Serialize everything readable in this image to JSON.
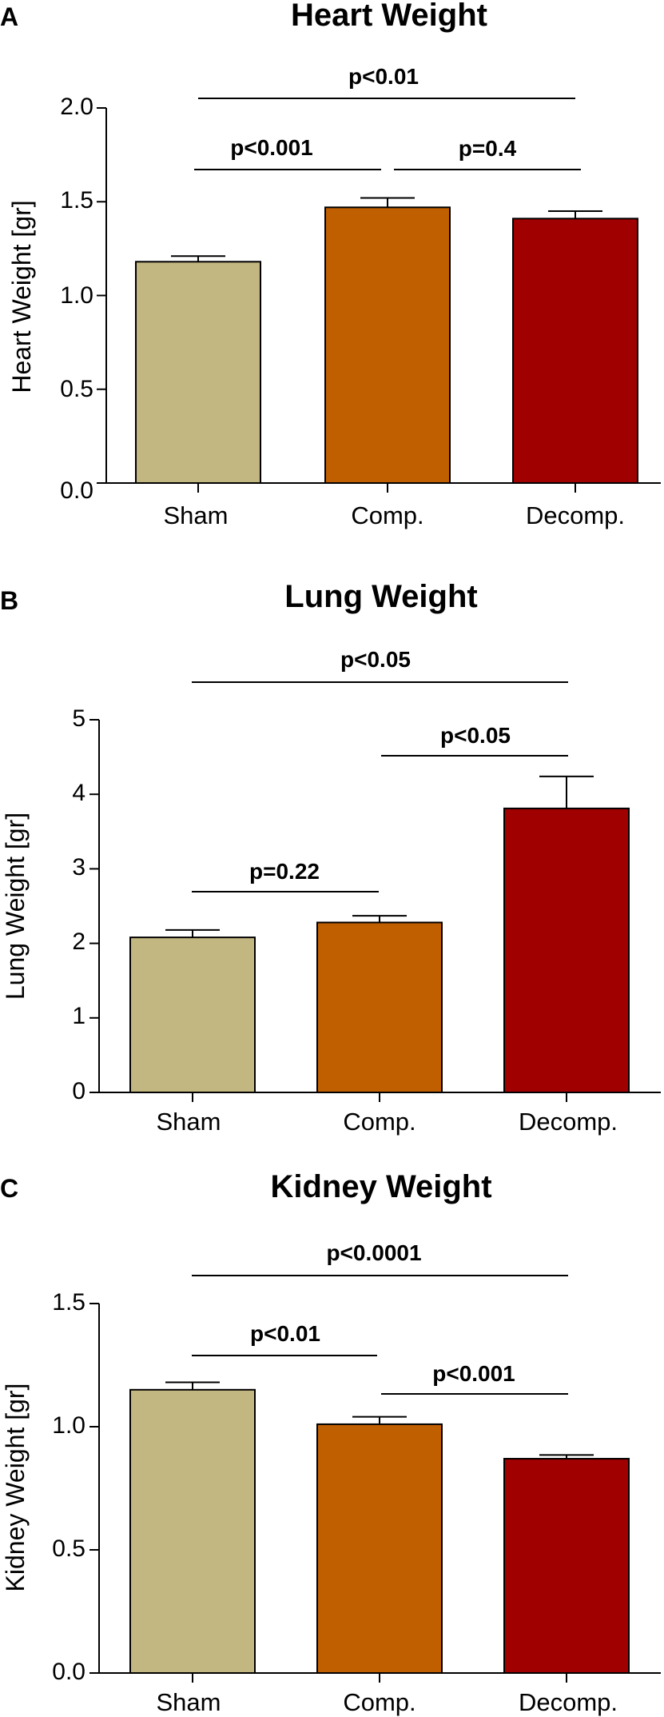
{
  "chart_data": [
    {
      "type": "bar",
      "panel": "A",
      "title": "Heart Weight",
      "ylabel": "Heart Weight [gr]",
      "categories": [
        "Sham",
        "Comp.",
        "Decomp."
      ],
      "values": [
        1.18,
        1.47,
        1.41
      ],
      "errors": [
        0.03,
        0.05,
        0.04
      ],
      "ylim": [
        0,
        2.0
      ],
      "yticks": [
        "0.0",
        "0.5",
        "1.0",
        "1.5",
        "2.0"
      ],
      "colors": [
        "#C2B780",
        "#C05F00",
        "#A00000"
      ],
      "comparisons": [
        {
          "from": "Sham",
          "to": "Comp.",
          "label": "p<0.001"
        },
        {
          "from": "Comp.",
          "to": "Decomp.",
          "label": "p=0.4"
        },
        {
          "from": "Sham",
          "to": "Decomp.",
          "label": "p<0.01"
        }
      ],
      "legend": "none",
      "grid": false
    },
    {
      "type": "bar",
      "panel": "B",
      "title": "Lung Weight",
      "ylabel": "Lung Weight [gr]",
      "categories": [
        "Sham",
        "Comp.",
        "Decomp."
      ],
      "values": [
        2.08,
        2.28,
        3.81
      ],
      "errors": [
        0.1,
        0.09,
        0.43
      ],
      "ylim": [
        0,
        5
      ],
      "yticks": [
        "0",
        "1",
        "2",
        "3",
        "4",
        "5"
      ],
      "colors": [
        "#C2B780",
        "#C05F00",
        "#A00000"
      ],
      "comparisons": [
        {
          "from": "Sham",
          "to": "Comp.",
          "label": "p=0.22"
        },
        {
          "from": "Comp.",
          "to": "Decomp.",
          "label": "p<0.05"
        },
        {
          "from": "Sham",
          "to": "Decomp.",
          "label": "p<0.05"
        }
      ],
      "legend": "none",
      "grid": false
    },
    {
      "type": "bar",
      "panel": "C",
      "title": "Kidney Weight",
      "ylabel": "Kidney Weight [gr]",
      "categories": [
        "Sham",
        "Comp.",
        "Decomp."
      ],
      "values": [
        1.15,
        1.01,
        0.87
      ],
      "errors": [
        0.03,
        0.03,
        0.015
      ],
      "ylim": [
        0,
        1.5
      ],
      "yticks": [
        "0.0",
        "0.5",
        "1.0",
        "1.5"
      ],
      "colors": [
        "#C2B780",
        "#C05F00",
        "#A00000"
      ],
      "comparisons": [
        {
          "from": "Sham",
          "to": "Comp.",
          "label": "p<0.01"
        },
        {
          "from": "Comp.",
          "to": "Decomp.",
          "label": "p<0.001"
        },
        {
          "from": "Sham",
          "to": "Decomp.",
          "label": "p<0.0001"
        }
      ],
      "legend": "none",
      "grid": false
    }
  ]
}
